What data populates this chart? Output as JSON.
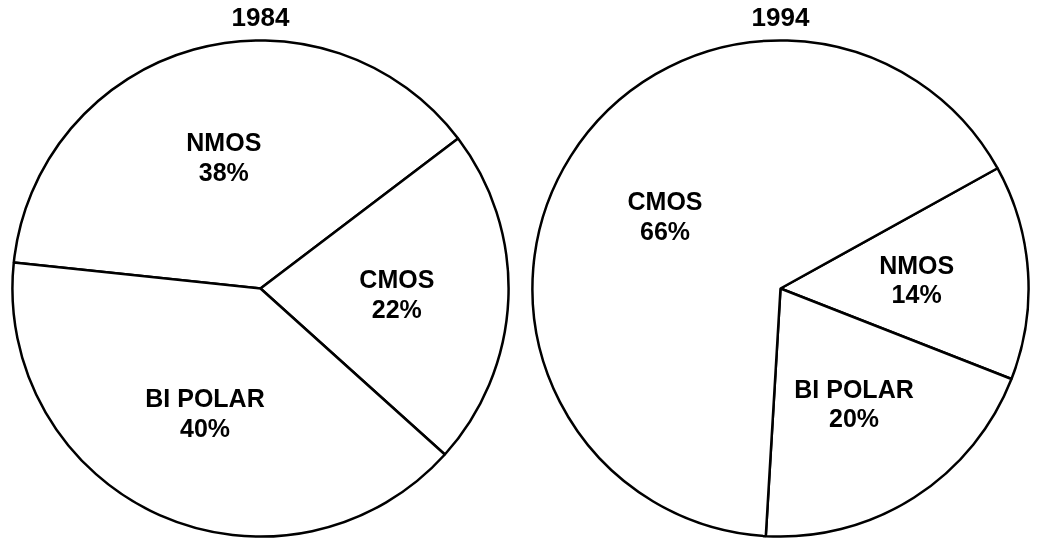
{
  "chart_data": [
    {
      "type": "pie",
      "title": "1984",
      "categories": [
        "NMOS",
        "CMOS",
        "BI POLAR"
      ],
      "values": [
        38,
        22,
        40
      ],
      "value_labels": [
        "38%",
        "22%",
        "40%"
      ],
      "colors": [
        "#ffffff",
        "#ffffff",
        "#ffffff"
      ]
    },
    {
      "type": "pie",
      "title": "1994",
      "categories": [
        "NMOS",
        "BI POLAR",
        "CMOS"
      ],
      "values": [
        14,
        20,
        66
      ],
      "value_labels": [
        "14%",
        "20%",
        "66%"
      ],
      "colors": [
        "#ffffff",
        "#ffffff",
        "#ffffff"
      ]
    }
  ]
}
